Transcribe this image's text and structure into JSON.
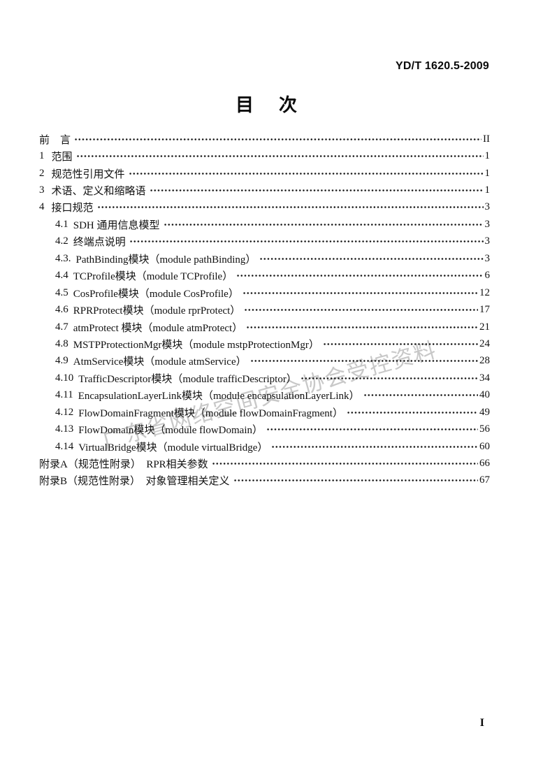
{
  "page": {
    "doc_number": "YD/T 1620.5-2009",
    "title": "目　次",
    "footer_page_number": "I"
  },
  "watermark": {
    "text": "广东省网络空间安全协会受控资料",
    "color": "#c3c3c3"
  },
  "toc": {
    "entries": [
      {
        "num": "",
        "label": "前　言",
        "page": "II",
        "level": 0
      },
      {
        "num": "1",
        "label": "范围",
        "page": "1",
        "level": 0
      },
      {
        "num": "2",
        "label": "规范性引用文件",
        "page": "1",
        "level": 0
      },
      {
        "num": "3",
        "label": "术语、定义和缩略语",
        "page": "1",
        "level": 0
      },
      {
        "num": "4",
        "label": "接口规范",
        "page": "3",
        "level": 0
      },
      {
        "num": "4.1",
        "label": "SDH 通用信息模型",
        "page": "3",
        "level": 1
      },
      {
        "num": "4.2",
        "label": "终端点说明",
        "page": "3",
        "level": 1
      },
      {
        "num": "4.3.",
        "label": "PathBinding模块（module pathBinding）",
        "page": "3",
        "level": 1
      },
      {
        "num": "4.4",
        "label": "TCProfile模块（module TCProfile）",
        "page": "6",
        "level": 1
      },
      {
        "num": "4.5",
        "label": "CosProfile模块（module CosProfile）",
        "page": "12",
        "level": 1
      },
      {
        "num": "4.6",
        "label": "RPRProtect模块（module rprProtect）",
        "page": "17",
        "level": 1
      },
      {
        "num": "4.7",
        "label": "atmProtect 模块（module atmProtect）",
        "page": "21",
        "level": 1
      },
      {
        "num": "4.8",
        "label": "MSTPProtectionMgr模块（module mstpProtectionMgr）",
        "page": "24",
        "level": 1
      },
      {
        "num": "4.9",
        "label": "AtmService模块（module atmService）",
        "page": "28",
        "level": 1
      },
      {
        "num": "4.10",
        "label": "TrafficDescriptor模块（module trafficDescriptor）",
        "page": "34",
        "level": 1
      },
      {
        "num": "4.11",
        "label": "EncapsulationLayerLink模块（module encapsulationLayerLink）",
        "page": "40",
        "level": 1
      },
      {
        "num": "4.12",
        "label": "FlowDomainFragment模块（module flowDomainFragment）",
        "page": "49",
        "level": 1
      },
      {
        "num": "4.13",
        "label": "FlowDomain模块（module flowDomain）",
        "page": "56",
        "level": 1
      },
      {
        "num": "4.14",
        "label": "VirtualBridge模块（module virtualBridge）",
        "page": "60",
        "level": 1
      },
      {
        "num": "",
        "label": "附录A（规范性附录）　RPR相关参数",
        "page": "66",
        "level": 0
      },
      {
        "num": "",
        "label": "附录B（规范性附录）　对象管理相关定义",
        "page": "67",
        "level": 0
      }
    ]
  }
}
